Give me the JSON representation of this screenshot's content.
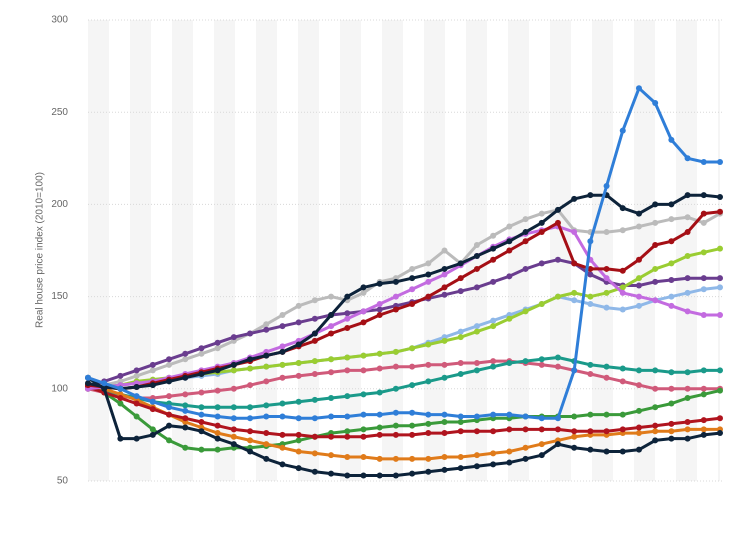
{
  "chart_data": {
    "type": "line",
    "y_label": "Real house price index (2010=100)",
    "ylim": [
      50,
      300
    ],
    "yticks": [
      50,
      100,
      150,
      200,
      250,
      300
    ],
    "grid": true,
    "categories": [
      null,
      null,
      null,
      null,
      null,
      null,
      null,
      null,
      null,
      null,
      null,
      null,
      null,
      null,
      null,
      null,
      null,
      null,
      null,
      null,
      null,
      null,
      null,
      null,
      null,
      null,
      null,
      null,
      null,
      null,
      null,
      null,
      null,
      null,
      null,
      null,
      null,
      null,
      null,
      null
    ],
    "series": [
      {
        "color": "#bbbbbb",
        "values": [
          100,
          102,
          104,
          107,
          110,
          113,
          116,
          119,
          122,
          126,
          130,
          135,
          140,
          145,
          148,
          150,
          148,
          152,
          158,
          160,
          165,
          168,
          175,
          168,
          178,
          183,
          188,
          192,
          195,
          197,
          186,
          185,
          185,
          186,
          188,
          190,
          192,
          193,
          190,
          195
        ]
      },
      {
        "color": "#8fb8e8",
        "values": [
          100,
          101,
          102,
          103,
          104,
          105,
          106,
          107,
          108,
          110,
          111,
          112,
          113,
          114,
          115,
          116,
          117,
          118,
          119,
          120,
          122,
          125,
          128,
          131,
          134,
          137,
          140,
          143,
          146,
          150,
          148,
          146,
          144,
          143,
          145,
          148,
          150,
          152,
          154,
          155
        ]
      },
      {
        "color": "#6a3d8f",
        "values": [
          101,
          104,
          107,
          110,
          113,
          116,
          119,
          122,
          125,
          128,
          130,
          132,
          134,
          136,
          138,
          140,
          141,
          142,
          143,
          145,
          147,
          149,
          151,
          153,
          155,
          158,
          161,
          165,
          168,
          170,
          168,
          162,
          158,
          156,
          156,
          158,
          159,
          160,
          160,
          160
        ]
      },
      {
        "color": "#9acd32",
        "values": [
          100,
          101,
          102,
          104,
          105,
          106,
          107,
          108,
          109,
          110,
          111,
          112,
          113,
          114,
          115,
          116,
          117,
          118,
          119,
          120,
          122,
          124,
          126,
          128,
          131,
          134,
          138,
          142,
          146,
          150,
          152,
          150,
          152,
          155,
          160,
          165,
          168,
          172,
          174,
          176
        ]
      },
      {
        "color": "#d05a7a",
        "values": [
          100,
          98,
          96,
          95,
          95,
          96,
          97,
          98,
          99,
          100,
          102,
          104,
          106,
          107,
          108,
          109,
          110,
          110,
          111,
          112,
          112,
          113,
          113,
          114,
          114,
          115,
          115,
          114,
          113,
          112,
          110,
          108,
          106,
          104,
          102,
          100,
          100,
          100,
          100,
          100
        ]
      },
      {
        "color": "#1a9a8a",
        "values": [
          101,
          99,
          97,
          95,
          93,
          92,
          91,
          90,
          90,
          90,
          90,
          91,
          92,
          93,
          94,
          95,
          96,
          97,
          98,
          100,
          102,
          104,
          106,
          108,
          110,
          112,
          114,
          115,
          116,
          117,
          115,
          113,
          112,
          111,
          110,
          110,
          109,
          109,
          110,
          110
        ]
      },
      {
        "color": "#3a9a3a",
        "values": [
          102,
          98,
          92,
          85,
          78,
          72,
          68,
          67,
          67,
          68,
          68,
          69,
          70,
          72,
          74,
          76,
          77,
          78,
          79,
          80,
          80,
          81,
          82,
          82,
          83,
          84,
          84,
          85,
          85,
          85,
          85,
          86,
          86,
          86,
          88,
          90,
          92,
          95,
          97,
          99
        ]
      },
      {
        "color": "#e07b1a",
        "values": [
          102,
          100,
          97,
          94,
          90,
          86,
          82,
          79,
          76,
          74,
          72,
          70,
          68,
          66,
          65,
          64,
          63,
          63,
          62,
          62,
          62,
          62,
          63,
          63,
          64,
          65,
          66,
          68,
          70,
          72,
          74,
          75,
          75,
          76,
          76,
          77,
          77,
          78,
          78,
          78
        ]
      },
      {
        "color": "#b0141e",
        "values": [
          101,
          98,
          95,
          92,
          89,
          86,
          84,
          82,
          80,
          78,
          77,
          76,
          75,
          75,
          74,
          74,
          74,
          74,
          75,
          75,
          75,
          76,
          76,
          77,
          77,
          77,
          78,
          78,
          78,
          78,
          77,
          77,
          77,
          78,
          79,
          80,
          81,
          82,
          83,
          84
        ]
      },
      {
        "color": "#c36be0",
        "values": [
          100,
          101,
          102,
          103,
          104,
          106,
          108,
          110,
          112,
          114,
          117,
          120,
          123,
          126,
          130,
          134,
          138,
          142,
          146,
          150,
          154,
          158,
          162,
          167,
          172,
          177,
          181,
          184,
          186,
          188,
          185,
          170,
          160,
          152,
          150,
          148,
          145,
          142,
          140,
          140
        ]
      },
      {
        "color": "#a50f15",
        "values": [
          102,
          101,
          100,
          101,
          103,
          105,
          107,
          109,
          111,
          113,
          115,
          118,
          120,
          123,
          126,
          130,
          133,
          136,
          140,
          143,
          146,
          150,
          155,
          160,
          165,
          170,
          175,
          180,
          185,
          190,
          168,
          165,
          165,
          164,
          170,
          178,
          180,
          185,
          195,
          196
        ]
      },
      {
        "color": "#0d233a",
        "values": [
          106,
          100,
          73,
          73,
          75,
          80,
          79,
          77,
          73,
          70,
          66,
          62,
          59,
          57,
          55,
          54,
          53,
          53,
          53,
          53,
          54,
          55,
          56,
          57,
          58,
          59,
          60,
          62,
          64,
          70,
          68,
          67,
          66,
          66,
          67,
          72,
          73,
          73,
          75,
          76
        ]
      },
      {
        "color": "#0d233a",
        "values": [
          103,
          101,
          100,
          101,
          102,
          104,
          106,
          108,
          110,
          113,
          116,
          118,
          120,
          124,
          130,
          140,
          150,
          155,
          157,
          158,
          160,
          162,
          165,
          168,
          172,
          176,
          180,
          185,
          190,
          197,
          203,
          205,
          205,
          198,
          195,
          200,
          200,
          205,
          205,
          204
        ]
      },
      {
        "color": "#2f7ed8",
        "values": [
          106,
          103,
          100,
          96,
          93,
          90,
          88,
          86,
          85,
          84,
          84,
          85,
          85,
          84,
          84,
          85,
          85,
          86,
          86,
          87,
          87,
          86,
          86,
          85,
          85,
          86,
          86,
          85,
          84,
          84,
          110,
          180,
          210,
          240,
          263,
          255,
          235,
          225,
          223,
          223
        ]
      }
    ]
  }
}
